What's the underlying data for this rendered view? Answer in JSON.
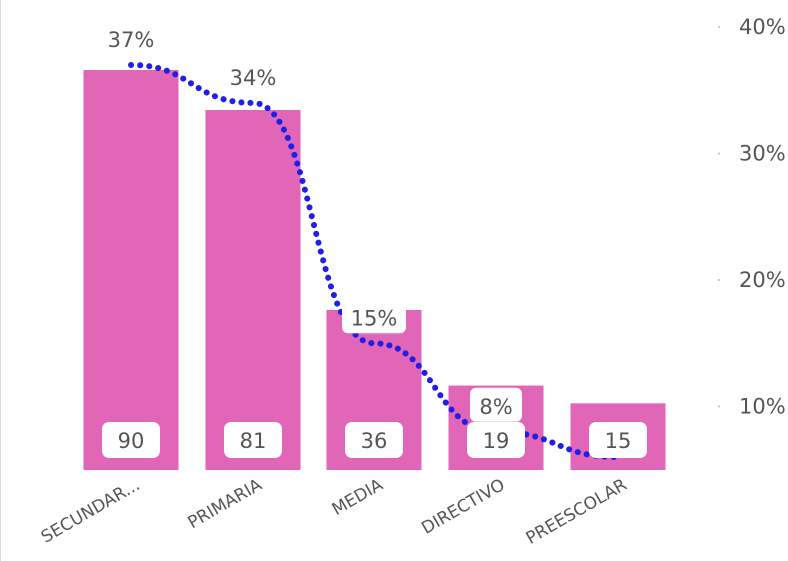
{
  "chart_data": {
    "type": "bar",
    "categories": [
      "SECUNDAR...",
      "PRIMARIA",
      "MEDIA",
      "DIRECTIVO",
      "PREESCOLAR"
    ],
    "series": [
      {
        "values": [
          90,
          81,
          36,
          19,
          15
        ],
        "color": "#e166b8"
      },
      {
        "values": [
          37,
          34,
          15,
          8,
          6
        ],
        "color": "#1f1fe6",
        "style": "dotted-line"
      }
    ],
    "bar_labels": [
      "90",
      "81",
      "36",
      "19",
      "15"
    ],
    "line_labels": [
      "37%",
      "34%",
      "15%",
      "8%",
      ""
    ],
    "y2_ticks": [
      "40%",
      "30%",
      "20%",
      "10%"
    ],
    "y2_tick_values": [
      40,
      30,
      20,
      10
    ],
    "bar_ylim": [
      0,
      98
    ],
    "line_ylim": [
      2.5,
      42
    ],
    "grid": false,
    "legend": "none"
  }
}
